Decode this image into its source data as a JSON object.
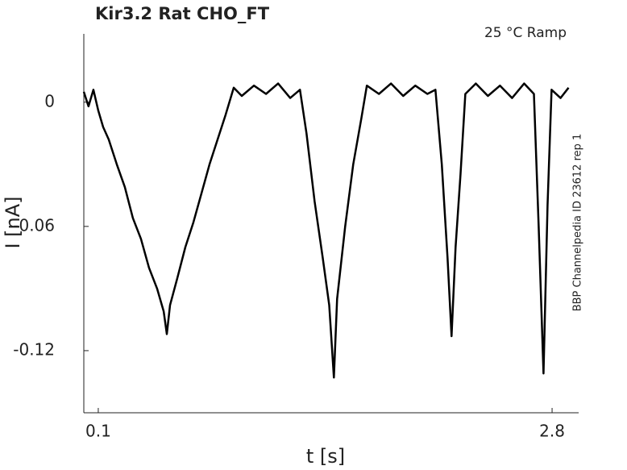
{
  "chart_data": {
    "type": "line",
    "title": "Kir3.2  Rat  CHO_FT",
    "annotation": "25 °C  Ramp",
    "side_note": "BBP Channelpedia ID 23612 rep 1",
    "x_label": "t [s]",
    "y_label": "I [nA]",
    "x": [
      0.014,
      0.042,
      0.071,
      0.1,
      0.129,
      0.162,
      0.21,
      0.258,
      0.306,
      0.354,
      0.402,
      0.45,
      0.489,
      0.508,
      0.527,
      0.57,
      0.618,
      0.666,
      0.714,
      0.762,
      0.81,
      0.858,
      0.906,
      0.954,
      1.026,
      1.098,
      1.17,
      1.242,
      1.3,
      1.339,
      1.387,
      1.435,
      1.474,
      1.502,
      1.521,
      1.569,
      1.617,
      1.665,
      1.698,
      1.77,
      1.842,
      1.914,
      1.986,
      2.058,
      2.106,
      2.144,
      2.178,
      2.202,
      2.226,
      2.255,
      2.284,
      2.346,
      2.418,
      2.49,
      2.562,
      2.634,
      2.692,
      2.72,
      2.749,
      2.773,
      2.797,
      2.85,
      2.898
    ],
    "series": [
      {
        "color": "#000000",
        "values": [
          0.005,
          -0.002,
          0.006,
          -0.004,
          -0.012,
          -0.018,
          -0.03,
          -0.041,
          -0.056,
          -0.066,
          -0.08,
          -0.09,
          -0.101,
          -0.112,
          -0.098,
          -0.085,
          -0.07,
          -0.058,
          -0.044,
          -0.03,
          -0.018,
          -0.006,
          0.007,
          0.003,
          0.008,
          0.004,
          0.009,
          0.002,
          0.006,
          -0.015,
          -0.048,
          -0.075,
          -0.098,
          -0.133,
          -0.095,
          -0.06,
          -0.03,
          -0.008,
          0.008,
          0.004,
          0.009,
          0.003,
          0.008,
          0.004,
          0.006,
          -0.03,
          -0.075,
          -0.113,
          -0.07,
          -0.035,
          0.004,
          0.009,
          0.003,
          0.008,
          0.002,
          0.009,
          0.004,
          -0.06,
          -0.131,
          -0.05,
          0.006,
          0.002,
          0.007
        ]
      }
    ],
    "xlim": [
      0.014,
      2.958
    ],
    "ylim": [
      -0.15,
      0.033
    ],
    "xticks": [
      0.1,
      2.8
    ],
    "yticks": [
      -0.12,
      -0.06,
      0
    ]
  }
}
